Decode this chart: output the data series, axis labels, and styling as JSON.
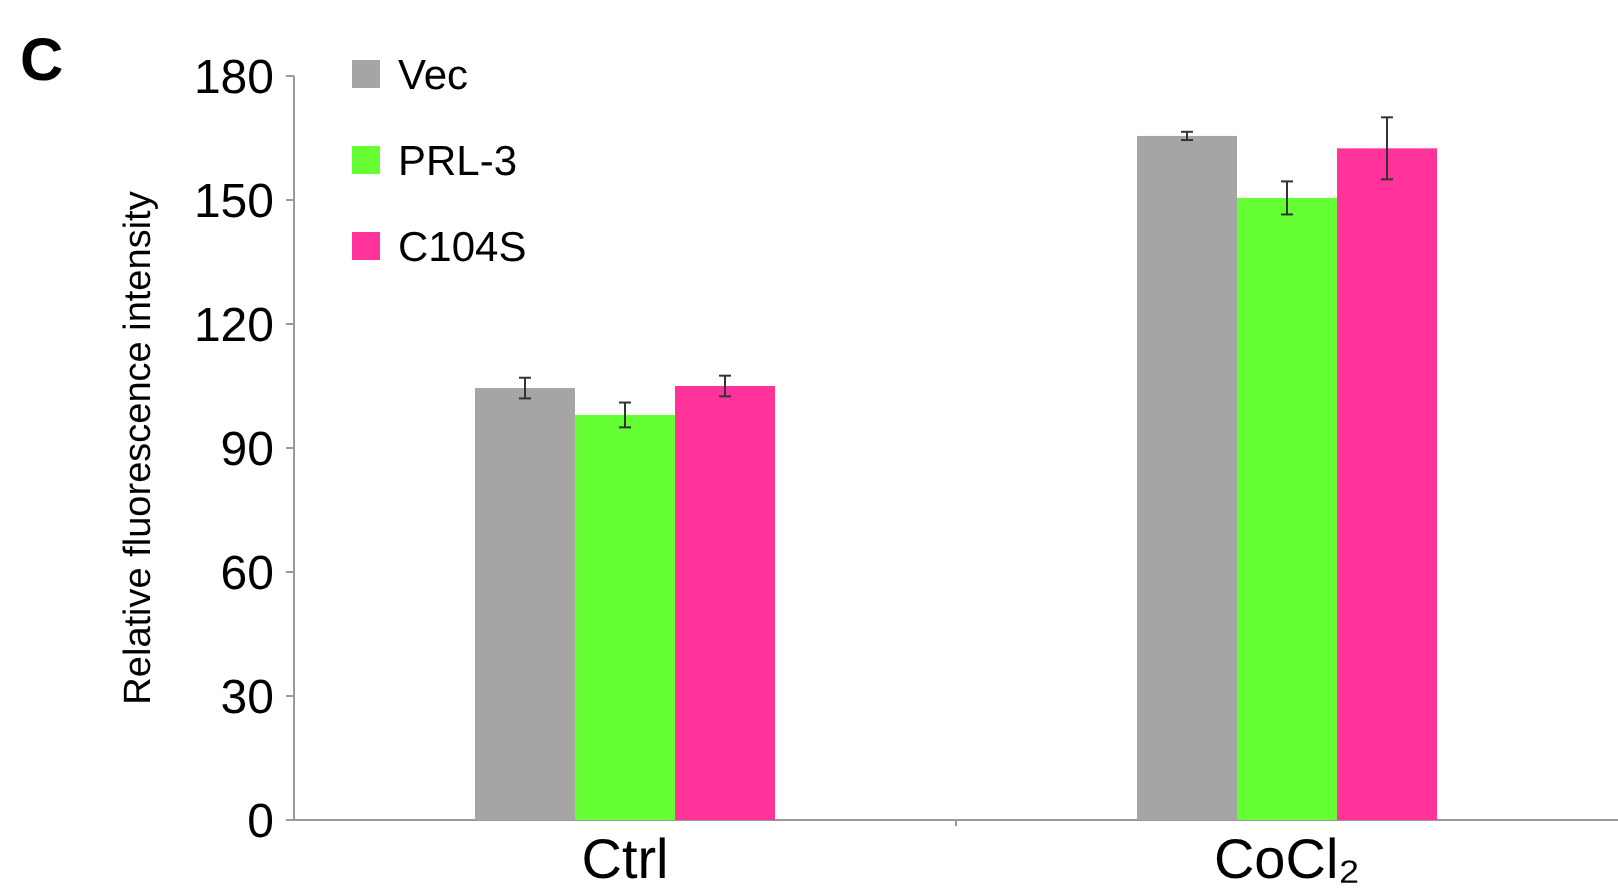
{
  "chart_data": {
    "type": "bar",
    "ylabel": "Relative fluorescence intensity",
    "categories": [
      "Ctrl",
      "CoCl₂"
    ],
    "series": [
      {
        "name": "Vec",
        "color": "#a5a5a5",
        "values": [
          104.5,
          165.5
        ],
        "errors": [
          2.5,
          1
        ]
      },
      {
        "name": "PRL-3",
        "color": "#66ff33",
        "values": [
          98,
          150.5
        ],
        "errors": [
          3,
          4
        ]
      },
      {
        "name": "C104S",
        "color": "#ff3399",
        "values": [
          105,
          162.5
        ],
        "errors": [
          2.5,
          7.5
        ]
      }
    ],
    "ylim": [
      0,
      180
    ],
    "yticks": [
      0,
      30,
      60,
      90,
      120,
      150,
      180
    ],
    "grid": false,
    "legend": "top left",
    "annotations": [
      "C"
    ]
  }
}
